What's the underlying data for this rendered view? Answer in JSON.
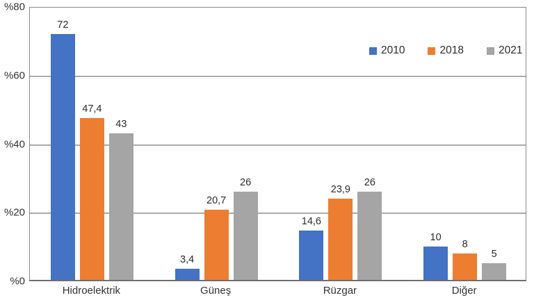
{
  "chart_data": {
    "type": "bar",
    "title": "",
    "categories": [
      "Hidroelektrik",
      "Güneş",
      "Rüzgar",
      "Diğer"
    ],
    "series": [
      {
        "name": "2010",
        "color": "#4472C4",
        "values": [
          72,
          3.4,
          14.6,
          10
        ],
        "value_labels": [
          "72",
          "3,4",
          "14,6",
          "10"
        ]
      },
      {
        "name": "2018",
        "color": "#ED7D31",
        "values": [
          47.4,
          20.7,
          23.9,
          8
        ],
        "value_labels": [
          "47,4",
          "20,7",
          "23,9",
          "8"
        ]
      },
      {
        "name": "2021",
        "color": "#A5A5A5",
        "values": [
          43,
          26,
          26,
          5
        ],
        "value_labels": [
          "43",
          "26",
          "26",
          "5"
        ]
      }
    ],
    "y_axis": {
      "min": 0,
      "max": 80,
      "tick_step": 20,
      "tick_labels": [
        "%0",
        "%20",
        "%40",
        "%60",
        "%80"
      ]
    },
    "xlabel": "",
    "ylabel": "",
    "grid": true,
    "legend_position": "top-right",
    "colors": {
      "gridline": "#ababab",
      "plot_border": "#8a8a8a",
      "axis_line": "#6e6e6e",
      "text": "#333333",
      "background": "#ffffff"
    }
  }
}
